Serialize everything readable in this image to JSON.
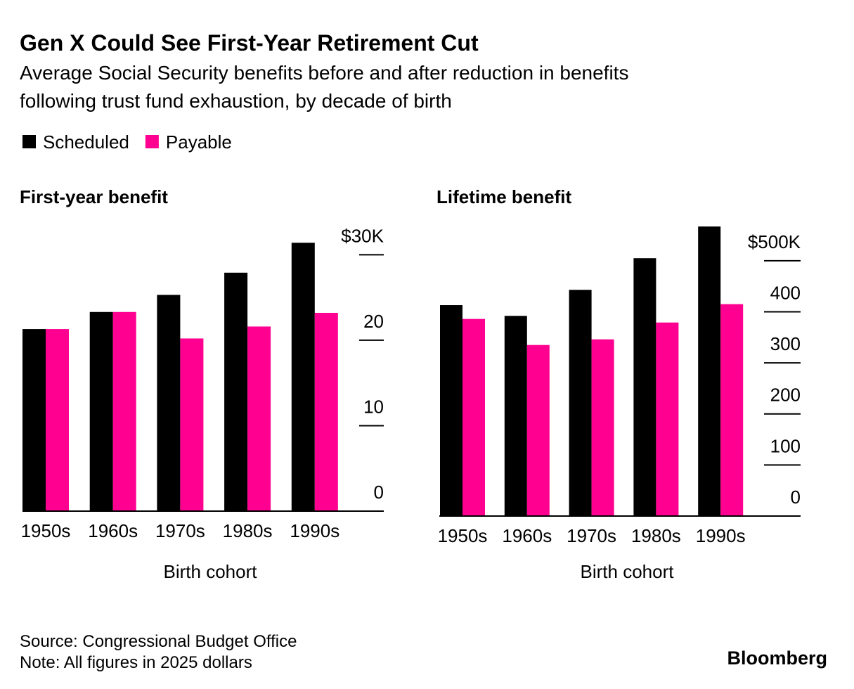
{
  "title": "Gen X Could See First-Year Retirement Cut",
  "subtitle": [
    "Average Social Security benefits before and after reduction in benefits",
    "following trust fund exhaustion, by decade of birth"
  ],
  "source": "Source: Congressional Budget Office",
  "note": "Note: All figures in 2025 dollars",
  "brand": "Bloomberg",
  "chart_data": [
    {
      "type": "bar",
      "title": "First-year benefit",
      "xlabel": "Birth cohort",
      "categories": [
        "1950s",
        "1960s",
        "1970s",
        "1980s",
        "1990s"
      ],
      "series": [
        {
          "name": "Scheduled",
          "color": "#000000",
          "values": [
            21.3,
            23.3,
            25.3,
            27.9,
            31.4
          ]
        },
        {
          "name": "Payable",
          "color": "#ff0090",
          "values": [
            21.3,
            23.3,
            20.2,
            21.6,
            23.2
          ]
        }
      ],
      "ylim": [
        0,
        32
      ],
      "yticks": [
        0,
        10,
        20,
        {
          "value": 30,
          "label": "$30K"
        }
      ]
    },
    {
      "type": "bar",
      "title": "Lifetime benefit",
      "xlabel": "Birth cohort",
      "categories": [
        "1950s",
        "1960s",
        "1970s",
        "1980s",
        "1990s"
      ],
      "series": [
        {
          "name": "Scheduled",
          "color": "#000000",
          "values": [
            413,
            392,
            443,
            505,
            567
          ]
        },
        {
          "name": "Payable",
          "color": "#ff0090",
          "values": [
            386,
            335,
            346,
            379,
            415
          ]
        }
      ],
      "ylim": [
        0,
        570
      ],
      "yticks": [
        0,
        100,
        200,
        300,
        400,
        {
          "value": 500,
          "label": "$500K"
        }
      ]
    }
  ]
}
